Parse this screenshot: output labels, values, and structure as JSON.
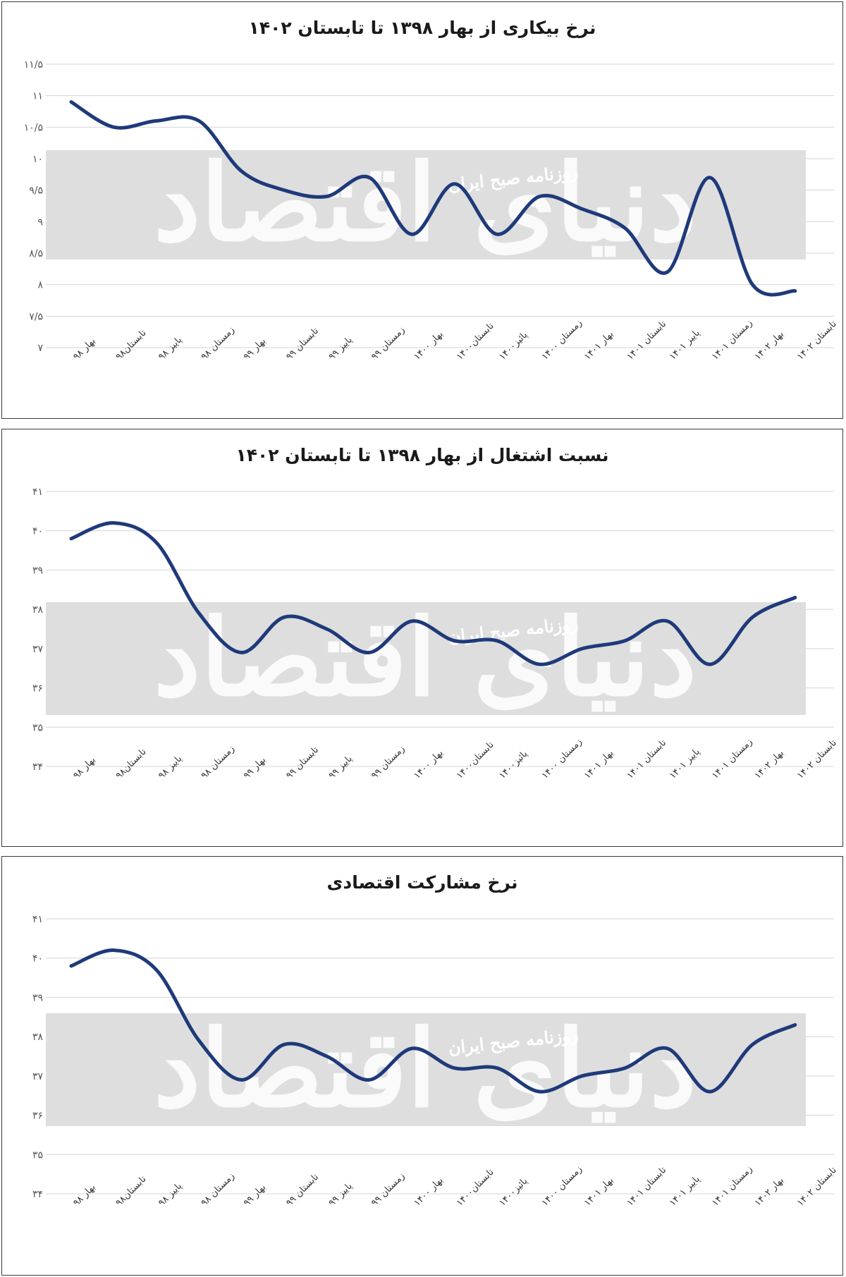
{
  "colors": {
    "line": "#1f3a7a",
    "grid": "#d4d4d4",
    "band": "#dedede",
    "border": "#3b3b3b"
  },
  "watermark": {
    "brand": "دنیای اقتصاد",
    "newspaper": "روزنامه صبح ایران"
  },
  "chart_data": [
    {
      "type": "line",
      "title": "نرخ بیکاری از بهار ۱۳۹۸ تا تابستان ۱۴۰۲",
      "xlabel": "",
      "ylabel": "",
      "categories": [
        "بهار ۹۸",
        "تابستان۹۸",
        "پاییز ۹۸",
        "زمستان ۹۸",
        "بهار ۹۹",
        "تابستان ۹۹",
        "پاییز ۹۹",
        "زمستان ۹۹",
        "بهار ۱۴۰۰",
        "تابستان۱۴۰۰",
        "پائیز۱۴۰۰",
        "زمستان ۱۴۰۰",
        "بهار ۱۴۰۱",
        "تابستان ۱۴۰۱",
        "پاییز ۱۴۰۱",
        "زمستان ۱۴۰۱",
        "بهار ۱۴۰۲",
        "تابستان ۱۴۰۲"
      ],
      "yticks": [
        "۷",
        "۷/۵",
        "۸",
        "۸/۵",
        "۹",
        "۹/۵",
        "۱۰",
        "۱۰/۵",
        "۱۱",
        "۱۱/۵"
      ],
      "ylim": [
        7,
        11.5
      ],
      "grid": true,
      "series": [
        {
          "values": [
            10.9,
            10.5,
            10.6,
            10.6,
            9.8,
            9.5,
            9.4,
            9.7,
            8.8,
            9.6,
            8.8,
            9.4,
            9.2,
            8.9,
            8.2,
            9.7,
            8.0,
            7.9
          ]
        }
      ]
    },
    {
      "type": "line",
      "title": "نسبت اشتغال از بهار  ۱۳۹۸ تا تابستان ۱۴۰۲",
      "xlabel": "",
      "ylabel": "",
      "categories": [
        "بهار ۹۸",
        "تابستان۹۸",
        "پاییز ۹۸",
        "زمستان ۹۸",
        "بهار ۹۹",
        "تابستان ۹۹",
        "پاییز ۹۹",
        "زمستان ۹۹",
        "بهار ۱۴۰۰",
        "تابستان۱۴۰۰",
        "پائیز۱۴۰۰",
        "زمستان ۱۴۰۰",
        "بهار ۱۴۰۱",
        "تابستان ۱۴۰۱",
        "پاییز ۱۴۰۱",
        "زمستان ۱۴۰۱",
        "بهار ۱۴۰۲",
        "تابستان ۱۴۰۲"
      ],
      "yticks": [
        "۳۴",
        "۳۵",
        "۳۶",
        "۳۷",
        "۳۸",
        "۳۹",
        "۴۰",
        "۴۱"
      ],
      "ylim": [
        34,
        41
      ],
      "grid": true,
      "series": [
        {
          "values": [
            39.8,
            40.2,
            39.7,
            37.9,
            36.9,
            37.8,
            37.5,
            36.9,
            37.7,
            37.2,
            37.2,
            36.6,
            37.0,
            37.2,
            37.7,
            36.6,
            37.8,
            38.3
          ]
        }
      ]
    },
    {
      "type": "line",
      "title": "نرخ مشارکت اقتصادی",
      "xlabel": "",
      "ylabel": "",
      "categories": [
        "بهار ۹۸",
        "تابستان۹۸",
        "پاییز ۹۸",
        "زمستان ۹۸",
        "بهار ۹۹",
        "تابستان ۹۹",
        "پاییز ۹۹",
        "زمستان ۹۹",
        "بهار ۱۴۰۰",
        "تابستان۱۴۰۰",
        "پائیز۱۴۰۰",
        "زمستان ۱۴۰۰",
        "بهار ۱۴۰۱",
        "تابستان ۱۴۰۱",
        "پاییز ۱۴۰۱",
        "زمستان ۱۴۰۱",
        "بهار ۱۴۰۲",
        "تابستان ۱۴۰۲"
      ],
      "yticks": [
        "۳۴",
        "۳۵",
        "۳۶",
        "۳۷",
        "۳۸",
        "۳۹",
        "۴۰",
        "۴۱"
      ],
      "ylim": [
        34,
        41
      ],
      "grid": true,
      "series": [
        {
          "values": [
            39.8,
            40.2,
            39.7,
            37.9,
            36.9,
            37.8,
            37.5,
            36.9,
            37.7,
            37.2,
            37.2,
            36.6,
            37.0,
            37.2,
            37.7,
            36.6,
            37.8,
            38.3
          ]
        }
      ]
    }
  ]
}
